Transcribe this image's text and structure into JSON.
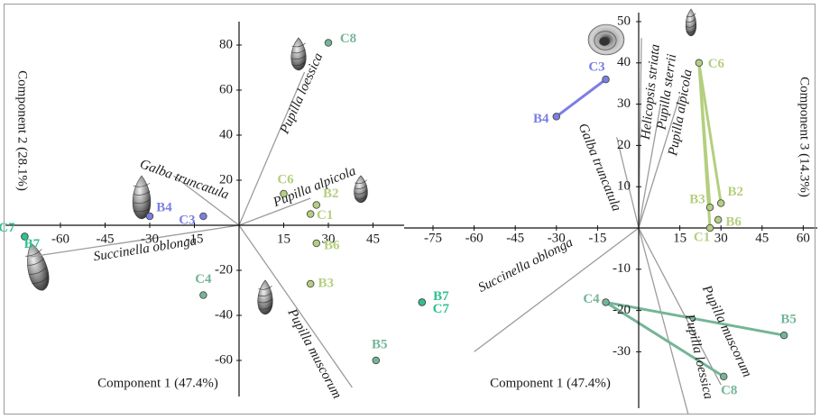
{
  "chart_data": [
    {
      "type": "scatter",
      "panel": "left",
      "xlabel": "Component 1 (47.4%)",
      "ylabel": "Component 2 (28.1%)",
      "x_ticks": [
        "-60",
        "-45",
        "-30",
        "-15",
        "15",
        "30",
        "45"
      ],
      "x_tick_values": [
        -60,
        -45,
        -30,
        -15,
        15,
        30,
        45
      ],
      "y_ticks": [
        "80",
        "60",
        "40",
        "20",
        "-20",
        "-40",
        "-60"
      ],
      "y_tick_values": [
        80,
        60,
        40,
        20,
        -20,
        -40,
        -60
      ],
      "xlim": [
        -78,
        57
      ],
      "ylim": [
        -72,
        90
      ],
      "points": [
        {
          "label": "C7",
          "x": -72,
          "y": -5,
          "color": "#2fc28e"
        },
        {
          "label": "B7",
          "x": -72,
          "y": -5,
          "color": "#2fc28e"
        },
        {
          "label": "B4",
          "x": -30,
          "y": 4,
          "color": "#7b7fe3"
        },
        {
          "label": "C3",
          "x": -12,
          "y": 4,
          "color": "#7b7fe3"
        },
        {
          "label": "C6",
          "x": 15,
          "y": 14,
          "color": "#b4cf7f"
        },
        {
          "label": "B2",
          "x": 26,
          "y": 9,
          "color": "#b4cf7f"
        },
        {
          "label": "C1",
          "x": 24,
          "y": 5,
          "color": "#b4cf7f"
        },
        {
          "label": "B6",
          "x": 26,
          "y": -8,
          "color": "#b4cf7f"
        },
        {
          "label": "B3",
          "x": 24,
          "y": -26,
          "color": "#b4cf7f"
        },
        {
          "label": "C4",
          "x": -12,
          "y": -31,
          "color": "#74b597"
        },
        {
          "label": "B5",
          "x": 46,
          "y": -60,
          "color": "#74b597"
        },
        {
          "label": "C8",
          "x": 30,
          "y": 81,
          "color": "#74b597"
        }
      ],
      "vectors": [
        {
          "label": "Pupilla loessica",
          "x": 22,
          "y": 68
        },
        {
          "label": "Pupilla alpicola",
          "x": 24,
          "y": 12
        },
        {
          "label": "Galba truncatula",
          "x": -22,
          "y": 22
        },
        {
          "label": "Succinella oblonga",
          "x": -70,
          "y": -14
        },
        {
          "label": "Pupilla muscorum",
          "x": 38,
          "y": -72
        }
      ]
    },
    {
      "type": "scatter",
      "panel": "right",
      "xlabel": "Component 1 (47.4%)",
      "ylabel": "Component 3 (14.3%)",
      "x_ticks": [
        "-75",
        "-60",
        "-45",
        "-30",
        "-15",
        "15",
        "30",
        "45",
        "60"
      ],
      "x_tick_values": [
        -75,
        -60,
        -45,
        -30,
        -15,
        15,
        30,
        45,
        60
      ],
      "y_ticks": [
        "50",
        "40",
        "30",
        "20",
        "10",
        "-10",
        "-20",
        "-30"
      ],
      "y_tick_values": [
        50,
        40,
        30,
        20,
        10,
        -10,
        -20,
        -30
      ],
      "xlim": [
        -82,
        62
      ],
      "ylim": [
        -36,
        52
      ],
      "points": [
        {
          "label": "C3",
          "x": -12,
          "y": 36,
          "color": "#7b7fe3"
        },
        {
          "label": "B4",
          "x": -30,
          "y": 27,
          "color": "#7b7fe3"
        },
        {
          "label": "C6",
          "x": 22,
          "y": 40,
          "color": "#b4cf7f"
        },
        {
          "label": "B3",
          "x": 26,
          "y": 5,
          "color": "#b4cf7f"
        },
        {
          "label": "B2",
          "x": 30,
          "y": 6,
          "color": "#b4cf7f"
        },
        {
          "label": "B6",
          "x": 29,
          "y": 2,
          "color": "#b4cf7f"
        },
        {
          "label": "C1",
          "x": 26,
          "y": 0,
          "color": "#b4cf7f"
        },
        {
          "label": "B7",
          "x": -79,
          "y": -18,
          "color": "#2fc28e"
        },
        {
          "label": "C7",
          "x": -79,
          "y": -18,
          "color": "#2fc28e"
        },
        {
          "label": "C4",
          "x": -12,
          "y": -18,
          "color": "#74b597"
        },
        {
          "label": "B5",
          "x": 53,
          "y": -26,
          "color": "#74b597"
        },
        {
          "label": "C8",
          "x": 31,
          "y": -36,
          "color": "#74b597"
        }
      ],
      "links": [
        {
          "from": "B4",
          "to": "C3",
          "color": "#7b7fe3"
        },
        {
          "from": "C6",
          "to": "B3",
          "color": "#b4cf7f"
        },
        {
          "from": "C6",
          "to": "B2",
          "color": "#b4cf7f"
        },
        {
          "from": "C6",
          "to": "C1",
          "color": "#b4cf7f"
        },
        {
          "from": "C4",
          "to": "B5",
          "color": "#74b597"
        },
        {
          "from": "C4",
          "to": "C8",
          "color": "#74b597"
        }
      ],
      "vectors": [
        {
          "label": "Helicopsis striata",
          "x": 1,
          "y": 46
        },
        {
          "label": "Pupilla sterrii",
          "x": 8,
          "y": 30
        },
        {
          "label": "Pupilla alpicola",
          "x": 15,
          "y": 32
        },
        {
          "label": "Galba truncatula",
          "x": -8,
          "y": 22
        },
        {
          "label": "Succinella oblonga",
          "x": -60,
          "y": -30
        },
        {
          "label": "Pupilla muscorum",
          "x": 30,
          "y": -38
        },
        {
          "label": "Pupilla loessica",
          "x": 18,
          "y": -45
        }
      ]
    }
  ]
}
